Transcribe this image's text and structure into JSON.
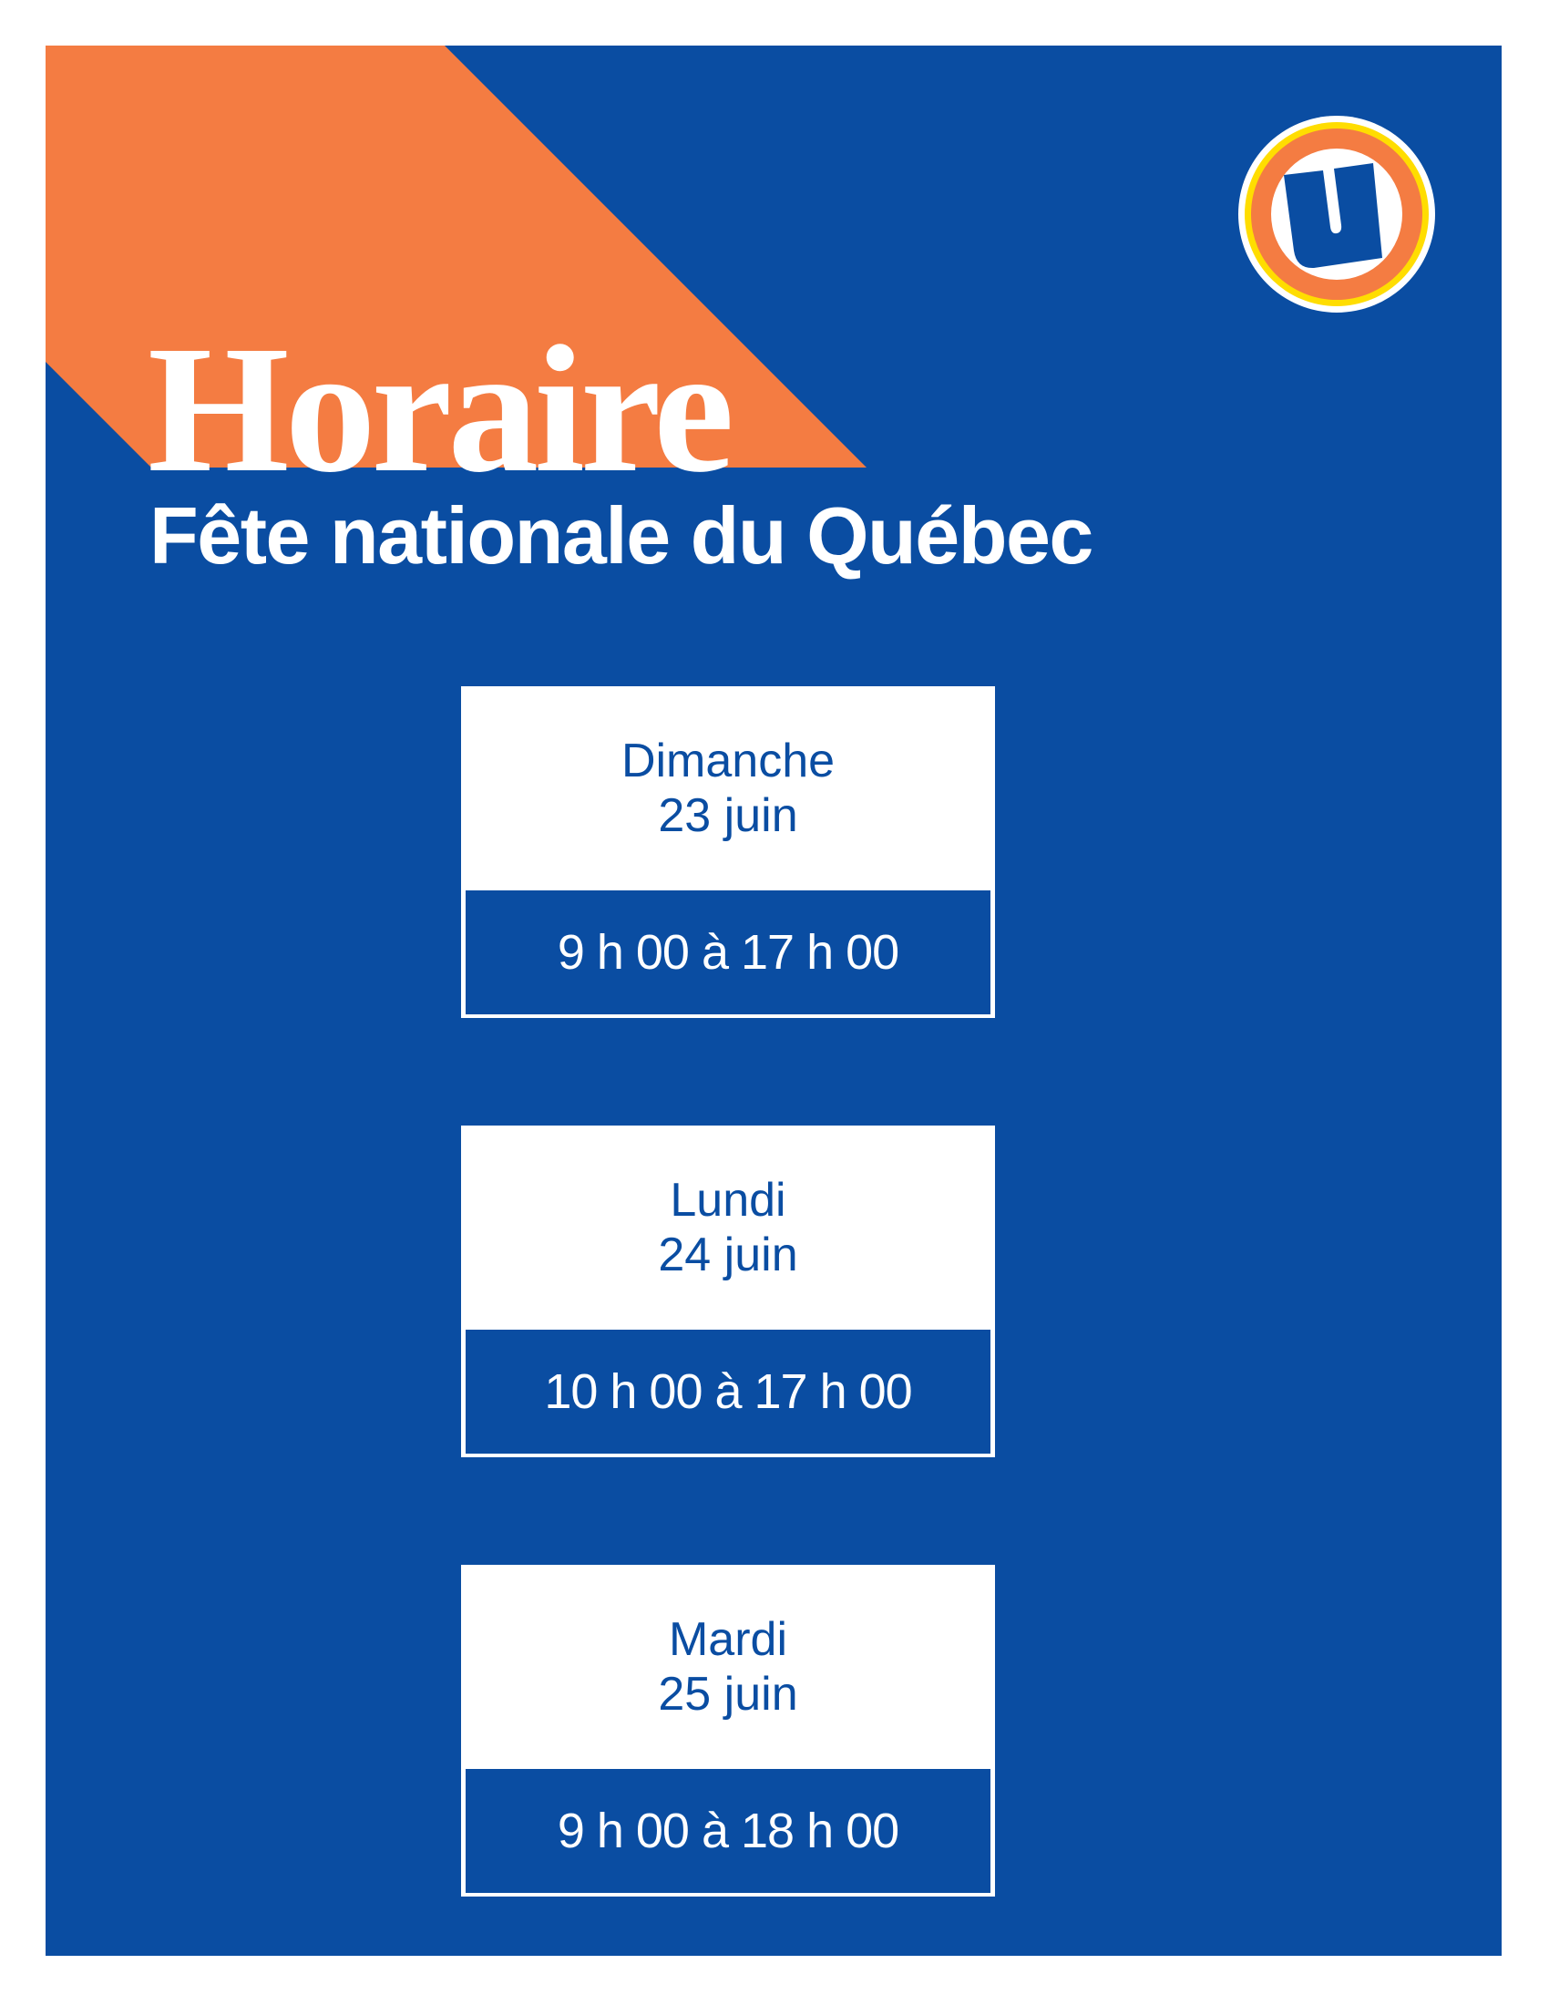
{
  "title": "Horaire",
  "subtitle": "Fête nationale du Québec",
  "logo": {
    "letter": "U",
    "icon": "u-logo-icon"
  },
  "colors": {
    "background": "#0a4da2",
    "accent": "#f47c42",
    "logo_ring_yellow": "#ffdd00"
  },
  "schedule": [
    {
      "day": "Dimanche",
      "date": "23 juin",
      "hours": "9 h 00 à 17 h 00"
    },
    {
      "day": "Lundi",
      "date": "24 juin",
      "hours": "10 h 00 à 17 h 00"
    },
    {
      "day": "Mardi",
      "date": "25 juin",
      "hours": "9 h 00 à 18 h 00"
    }
  ]
}
